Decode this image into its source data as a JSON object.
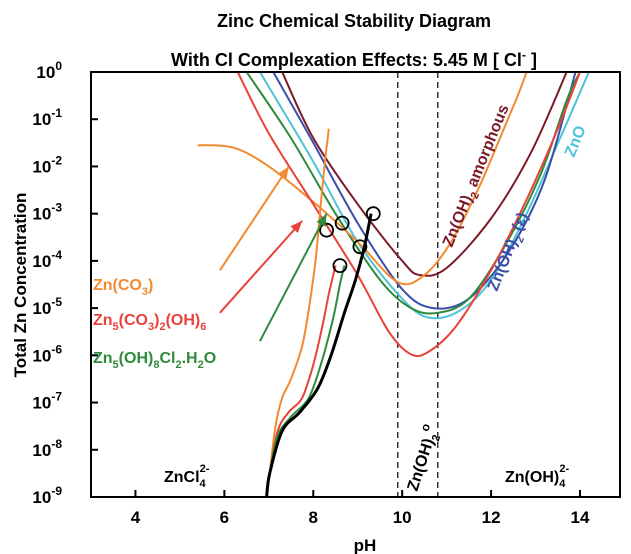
{
  "chart_data": {
    "type": "line",
    "title_line1": "Zinc Chemical Stability Diagram",
    "title_line2_prefix": "With Cl Complexation Effects: 5.45 M [ Cl",
    "title_line2_sup": "-",
    "title_line2_suffix": " ]",
    "xlabel": "pH",
    "ylabel": "Total Zn Concentration",
    "xlim": [
      3,
      14.9
    ],
    "ylim_log10": [
      -9,
      0
    ],
    "yscale": "log",
    "x_ticks": [
      4,
      6,
      8,
      10,
      12,
      14
    ],
    "x_tick_labels": [
      "4",
      "6",
      "8",
      "10",
      "12",
      "14"
    ],
    "y_ticks_log10": [
      0,
      -1,
      -2,
      -3,
      -4,
      -5,
      -6,
      -7,
      -8,
      -9
    ],
    "y_tick_base": "10",
    "y_tick_exponents": [
      "0",
      "-1",
      "-2",
      "-3",
      "-4",
      "-5",
      "-6",
      "-7",
      "-8",
      "-9"
    ],
    "vertical_lines": [
      9.9,
      10.8
    ],
    "series": [
      {
        "name": "Zn(OH)2 amorphous",
        "color": "#7b1a28",
        "points": [
          [
            7.3,
            0
          ],
          [
            8,
            -1.4
          ],
          [
            9,
            -2.8
          ],
          [
            10,
            -4
          ],
          [
            10.4,
            -4.3
          ],
          [
            11,
            -4.15
          ],
          [
            12,
            -3.1
          ],
          [
            12.9,
            -1.7
          ],
          [
            13.7,
            0
          ]
        ]
      },
      {
        "name": "ZnO",
        "color": "#4ec3d8",
        "points": [
          [
            6.8,
            0
          ],
          [
            8,
            -1.9
          ],
          [
            9,
            -3.6
          ],
          [
            10,
            -4.8
          ],
          [
            10.6,
            -5.2
          ],
          [
            11.3,
            -5.05
          ],
          [
            12,
            -4.4
          ],
          [
            12.8,
            -3
          ],
          [
            13.6,
            -1.3
          ],
          [
            14.2,
            0
          ]
        ]
      },
      {
        "name": "Zn(OH)2 (ε)",
        "color": "#3a4fa8",
        "points": [
          [
            7.1,
            0
          ],
          [
            8,
            -1.5
          ],
          [
            9,
            -3.2
          ],
          [
            10,
            -4.6
          ],
          [
            10.7,
            -5.0
          ],
          [
            11.5,
            -4.8
          ],
          [
            12.4,
            -3.8
          ],
          [
            13.2,
            -2.3
          ],
          [
            13.9,
            0
          ]
        ]
      },
      {
        "name": "Zn5(OH)8Cl2.H2O",
        "color": "#2e8b3c",
        "points": [
          [
            6.5,
            0
          ],
          [
            7.5,
            -1.4
          ],
          [
            8.5,
            -3
          ],
          [
            9.5,
            -4.4
          ],
          [
            10.2,
            -5.0
          ],
          [
            10.8,
            -5.1
          ],
          [
            11.5,
            -4.8
          ],
          [
            12.3,
            -3.7
          ],
          [
            13.1,
            -2.2
          ],
          [
            13.7,
            -0.6
          ],
          [
            14,
            0
          ]
        ]
      },
      {
        "name": "Zn(CO3)",
        "color": "#f28a30",
        "points": [
          [
            5.4,
            -1.55
          ],
          [
            6.2,
            -1.6
          ],
          [
            7,
            -2
          ],
          [
            8,
            -2.75
          ],
          [
            9,
            -3.6
          ],
          [
            9.9,
            -4.45
          ],
          [
            10.5,
            -4.3
          ],
          [
            11.1,
            -3.6
          ],
          [
            11.7,
            -2.5
          ],
          [
            12.2,
            -1.4
          ],
          [
            12.6,
            -0.5
          ],
          [
            12.8,
            0
          ]
        ]
      },
      {
        "name": "Zn5(CO3)2(OH)6",
        "color": "#e8423a",
        "points": [
          [
            6.3,
            0
          ],
          [
            7,
            -1.3
          ],
          [
            8,
            -2.8
          ],
          [
            9,
            -4.3
          ],
          [
            9.7,
            -5.5
          ],
          [
            10.2,
            -5.98
          ],
          [
            10.6,
            -5.92
          ],
          [
            11.2,
            -5.4
          ],
          [
            12,
            -4.2
          ],
          [
            12.8,
            -2.7
          ],
          [
            13.5,
            -1.2
          ],
          [
            14,
            0
          ]
        ]
      },
      {
        "name": "ZnCl4 boundary (orange)",
        "color": "#f28a30",
        "points": [
          [
            6.95,
            -9
          ],
          [
            7.02,
            -8.5
          ],
          [
            7.15,
            -7.5
          ],
          [
            7.3,
            -6.9
          ],
          [
            7.5,
            -6.5
          ],
          [
            7.75,
            -5.8
          ],
          [
            7.92,
            -4.9
          ],
          [
            8.05,
            -4
          ],
          [
            8.15,
            -3
          ],
          [
            8.25,
            -2
          ],
          [
            8.35,
            -1.2
          ]
        ]
      },
      {
        "name": "ZnCl4 boundary (red)",
        "color": "#e8423a",
        "points": [
          [
            6.95,
            -9
          ],
          [
            7.02,
            -8.5
          ],
          [
            7.2,
            -7.6
          ],
          [
            7.45,
            -7.2
          ],
          [
            7.75,
            -6.9
          ],
          [
            8.0,
            -6.2
          ],
          [
            8.2,
            -5.4
          ],
          [
            8.35,
            -4.7
          ],
          [
            8.5,
            -4.1
          ]
        ]
      },
      {
        "name": "ZnCl4 boundary (green)",
        "color": "#2e8b3c",
        "points": [
          [
            6.95,
            -9
          ],
          [
            7.02,
            -8.5
          ],
          [
            7.2,
            -7.7
          ],
          [
            7.5,
            -7.3
          ],
          [
            7.9,
            -6.9
          ],
          [
            8.2,
            -6.1
          ],
          [
            8.45,
            -5.2
          ],
          [
            8.6,
            -4.5
          ],
          [
            8.7,
            -4.1
          ]
        ]
      },
      {
        "name": "ZnCl4 boundary (black)",
        "color": "#000000",
        "width": 3,
        "points": [
          [
            6.95,
            -9
          ],
          [
            7.02,
            -8.5
          ],
          [
            7.3,
            -7.6
          ],
          [
            7.7,
            -7.2
          ],
          [
            8.1,
            -6.7
          ],
          [
            8.4,
            -6.0
          ],
          [
            8.7,
            -5.1
          ],
          [
            8.95,
            -4.4
          ],
          [
            9.15,
            -3.7
          ],
          [
            9.3,
            -3.0
          ]
        ]
      }
    ],
    "intersections": [
      [
        8.3,
        -3.35
      ],
      [
        8.65,
        -3.2
      ],
      [
        8.6,
        -4.1
      ],
      [
        9.05,
        -3.7
      ],
      [
        9.35,
        -3.0
      ]
    ],
    "arrows": [
      {
        "color": "#f28a30",
        "from": [
          5.9,
          -4.2
        ],
        "to": [
          7.45,
          -2.0
        ]
      },
      {
        "color": "#e8423a",
        "from": [
          5.9,
          -5.1
        ],
        "to": [
          7.75,
          -3.15
        ]
      },
      {
        "color": "#2e8b3c",
        "from": [
          6.8,
          -5.7
        ],
        "to": [
          8.3,
          -3.0
        ]
      }
    ],
    "annotations": {
      "zn_co3": {
        "base": "Zn(CO",
        "sub1": "3",
        "tail": ")",
        "color": "#f28a30"
      },
      "zn5_co3_oh": {
        "base": "Zn",
        "sub1": "5",
        "mid1": "(CO",
        "sub2": "3",
        "mid2": ")",
        "sub3": "2",
        "mid3": "(OH)",
        "sub4": "6",
        "color": "#e8423a"
      },
      "zn5_oh_cl": {
        "base": "Zn",
        "sub1": "5",
        "mid1": "(OH)",
        "sub2": "8",
        "mid2": "Cl",
        "sub3": "2",
        "mid3": ".H",
        "sub4": "2",
        "tail": "O",
        "color": "#2e8b3c"
      },
      "zn_oh2_amorphous": {
        "base": "Zn(OH)",
        "sub": "2",
        "tail": " amorphous",
        "color": "#7b1a28"
      },
      "zn_oh2_eps": {
        "base": "Zn(OH)",
        "sub": "2",
        "tail": " (ε)",
        "color": "#3a4fa8"
      },
      "zno": {
        "text": "ZnO",
        "color": "#4ec3d8"
      },
      "zn_oh2_aq": {
        "base": "Zn(OH)",
        "sub": "2",
        "sup": "o",
        "color": "#000000"
      },
      "zncl4": {
        "base": "ZnCl",
        "sub": "4",
        "sup": "2-",
        "color": "#000000"
      },
      "zn_oh4": {
        "base": "Zn(OH)",
        "sub": "4",
        "sup": "2-",
        "color": "#000000"
      }
    }
  }
}
